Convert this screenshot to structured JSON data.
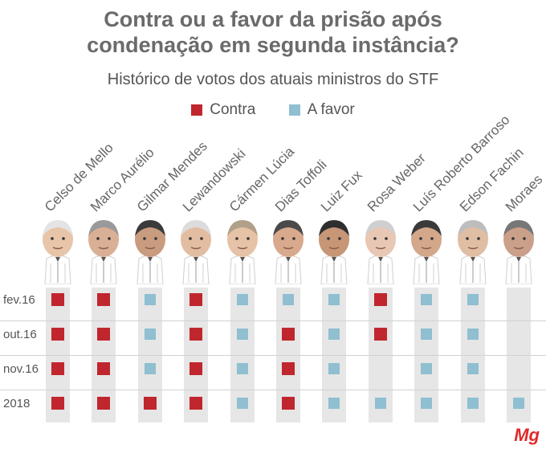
{
  "header": {
    "title_line1": "Contra ou a favor da prisão após",
    "title_line2": "condenação em segunda instância?",
    "subtitle": "Histórico de votos dos atuais ministros do STF"
  },
  "legend": {
    "contra": "Contra",
    "favor": "A favor"
  },
  "colors": {
    "contra": "#c0262d",
    "favor": "#8fbfd0",
    "cell_bg": "#e6e6e6"
  },
  "logo": "Mg",
  "chart_data": {
    "type": "table",
    "title": "Contra ou a favor da prisão após condenação em segunda instância?",
    "subtitle": "Histórico de votos dos atuais ministros do STF",
    "columns": [
      "Celso de Mello",
      "Marco Aurélio",
      "Gilmar Mendes",
      "Lewandowski",
      "Cármen Lúcia",
      "Dias Toffoli",
      "Luiz Fux",
      "Rosa Weber",
      "Luís Roberto Barroso",
      "Edson Fachin",
      "Moraes"
    ],
    "rows": [
      {
        "label": "fev.16",
        "votes": [
          "contra",
          "contra",
          "favor",
          "contra",
          "favor",
          "favor",
          "favor",
          "contra",
          "favor",
          "favor",
          ""
        ]
      },
      {
        "label": "out.16",
        "votes": [
          "contra",
          "contra",
          "favor",
          "contra",
          "favor",
          "contra",
          "favor",
          "contra",
          "favor",
          "favor",
          ""
        ]
      },
      {
        "label": "nov.16",
        "votes": [
          "contra",
          "contra",
          "favor",
          "contra",
          "favor",
          "contra",
          "favor",
          "",
          "favor",
          "favor",
          ""
        ]
      },
      {
        "label": "2018",
        "votes": [
          "contra",
          "contra",
          "contra",
          "contra",
          "favor",
          "contra",
          "favor",
          "favor",
          "favor",
          "favor",
          "favor"
        ]
      }
    ],
    "legend": [
      "Contra",
      "A favor"
    ]
  }
}
